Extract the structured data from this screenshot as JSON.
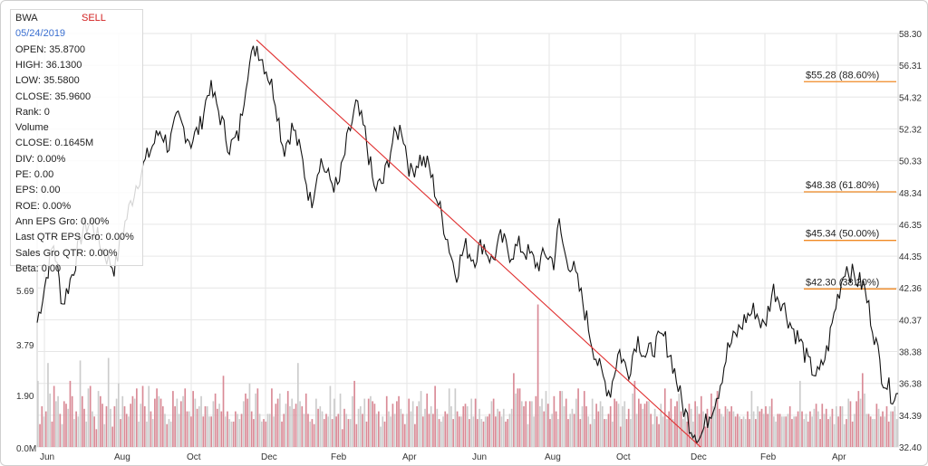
{
  "chart_data": {
    "type": "line",
    "ticker": "BWA",
    "rating": "SELL",
    "info": {
      "date": "05/24/2019",
      "open": "OPEN: 35.8700",
      "high": "HIGH: 36.1300",
      "low": "LOW: 35.5800",
      "close": "CLOSE: 35.9600",
      "rank": "Rank: 0",
      "volume_label": "Volume",
      "volume_close": "CLOSE: 0.1645M",
      "div": "DIV: 0.00%",
      "pe": "PE: 0.00",
      "eps": "EPS: 0.00",
      "roe": "ROE: 0.00%",
      "ann_eps_gro": "Ann EPS Gro: 0.00%",
      "last_qtr_eps_gro": "Last QTR EPS Gro: 0.00%",
      "sales_gro_qtr": "Sales Gro QTR: 0.00%",
      "beta": "Beta: 0.00"
    },
    "price_axis": {
      "ticks": [
        "58.30",
        "56.31",
        "54.32",
        "52.32",
        "50.33",
        "48.34",
        "46.35",
        "44.35",
        "42.36",
        "40.37",
        "38.38",
        "36.38",
        "34.39",
        "32.40"
      ],
      "range": [
        32.4,
        58.3
      ]
    },
    "volume_axis": {
      "ticks": [
        "5.69",
        "3.79",
        "1.90",
        "0.0M"
      ],
      "range": [
        0,
        8.0
      ]
    },
    "x_axis": {
      "ticks": [
        "Jun",
        "Aug",
        "Oct",
        "Dec",
        "Feb",
        "Apr",
        "Jun",
        "Aug",
        "Oct",
        "Dec",
        "Feb",
        "Apr"
      ]
    },
    "price_series": [
      {
        "t": 0,
        "v": 40.2
      },
      {
        "t": 1.8,
        "v": 45.2
      },
      {
        "t": 2.8,
        "v": 41.3
      },
      {
        "t": 4.0,
        "v": 43.5
      },
      {
        "t": 5.0,
        "v": 46.0
      },
      {
        "t": 6.0,
        "v": 46.5
      },
      {
        "t": 7.0,
        "v": 45.0
      },
      {
        "t": 8.0,
        "v": 44.0
      },
      {
        "t": 8.6,
        "v": 43.6
      },
      {
        "t": 9.5,
        "v": 46.0
      },
      {
        "t": 11.0,
        "v": 49.0
      },
      {
        "t": 12.5,
        "v": 51.0
      },
      {
        "t": 13.6,
        "v": 52.3
      },
      {
        "t": 14.5,
        "v": 51.2
      },
      {
        "t": 15.5,
        "v": 53.0
      },
      {
        "t": 17.0,
        "v": 51.5
      },
      {
        "t": 18.0,
        "v": 52.5
      },
      {
        "t": 19.0,
        "v": 55.0
      },
      {
        "t": 20.0,
        "v": 53.5
      },
      {
        "t": 21.2,
        "v": 51.2
      },
      {
        "t": 22.2,
        "v": 51.8
      },
      {
        "t": 23.2,
        "v": 56.0
      },
      {
        "t": 24.2,
        "v": 57.6
      },
      {
        "t": 25.2,
        "v": 56.2
      },
      {
        "t": 26.2,
        "v": 54.5
      },
      {
        "t": 27.2,
        "v": 51.0
      },
      {
        "t": 28.2,
        "v": 52.5
      },
      {
        "t": 29.2,
        "v": 50.5
      },
      {
        "t": 30.2,
        "v": 47.6
      },
      {
        "t": 31.2,
        "v": 50.5
      },
      {
        "t": 32.2,
        "v": 49.2
      },
      {
        "t": 33.2,
        "v": 48.6
      },
      {
        "t": 34.2,
        "v": 51.5
      },
      {
        "t": 35.2,
        "v": 53.8
      },
      {
        "t": 36.2,
        "v": 52.0
      },
      {
        "t": 37.2,
        "v": 48.5
      },
      {
        "t": 38.2,
        "v": 49.0
      },
      {
        "t": 39.2,
        "v": 51.5
      },
      {
        "t": 40.2,
        "v": 52.5
      },
      {
        "t": 41.2,
        "v": 49.5
      },
      {
        "t": 42.2,
        "v": 50.5
      },
      {
        "t": 43.2,
        "v": 50.0
      },
      {
        "t": 44.2,
        "v": 47.8
      },
      {
        "t": 45.2,
        "v": 45.6
      },
      {
        "t": 46.2,
        "v": 43.2
      },
      {
        "t": 47.2,
        "v": 45.0
      },
      {
        "t": 48.2,
        "v": 44.2
      },
      {
        "t": 49.2,
        "v": 45.2
      },
      {
        "t": 50.2,
        "v": 44.0
      },
      {
        "t": 51.2,
        "v": 45.5
      },
      {
        "t": 52.2,
        "v": 44.5
      },
      {
        "t": 53.2,
        "v": 45.0
      },
      {
        "t": 54.2,
        "v": 44.5
      },
      {
        "t": 55.2,
        "v": 43.8
      },
      {
        "t": 56.2,
        "v": 44.5
      },
      {
        "t": 57.0,
        "v": 44.0
      },
      {
        "t": 57.6,
        "v": 46.4
      },
      {
        "t": 58.2,
        "v": 44.5
      },
      {
        "t": 59.2,
        "v": 43.5
      },
      {
        "t": 60.2,
        "v": 41.5
      },
      {
        "t": 61.2,
        "v": 39.0
      },
      {
        "t": 62.2,
        "v": 37.0
      },
      {
        "t": 63.2,
        "v": 35.8
      },
      {
        "t": 64.2,
        "v": 38.5
      },
      {
        "t": 65.2,
        "v": 37.0
      },
      {
        "t": 66.2,
        "v": 39.3
      },
      {
        "t": 67.2,
        "v": 38.0
      },
      {
        "t": 68.2,
        "v": 38.8
      },
      {
        "t": 69.2,
        "v": 39.3
      },
      {
        "t": 70.2,
        "v": 37.5
      },
      {
        "t": 71.2,
        "v": 35.0
      },
      {
        "t": 72.2,
        "v": 33.6
      },
      {
        "t": 73.2,
        "v": 33.0
      },
      {
        "t": 74.2,
        "v": 34.5
      },
      {
        "t": 75.2,
        "v": 36.0
      },
      {
        "t": 76.2,
        "v": 38.5
      },
      {
        "t": 77.2,
        "v": 39.5
      },
      {
        "t": 78.2,
        "v": 40.5
      },
      {
        "t": 79.2,
        "v": 41.0
      },
      {
        "t": 80.2,
        "v": 39.8
      },
      {
        "t": 81.2,
        "v": 42.3
      },
      {
        "t": 82.2,
        "v": 41.5
      },
      {
        "t": 83.2,
        "v": 40.0
      },
      {
        "t": 84.2,
        "v": 39.0
      },
      {
        "t": 85.2,
        "v": 37.5
      },
      {
        "t": 86.2,
        "v": 36.8
      },
      {
        "t": 87.2,
        "v": 38.5
      },
      {
        "t": 88.2,
        "v": 41.5
      },
      {
        "t": 89.2,
        "v": 43.8
      },
      {
        "t": 90.2,
        "v": 43.0
      },
      {
        "t": 91.2,
        "v": 42.5
      },
      {
        "t": 92.2,
        "v": 40.0
      },
      {
        "t": 93.2,
        "v": 37.0
      },
      {
        "t": 94.2,
        "v": 35.8
      },
      {
        "t": 95.0,
        "v": 35.6
      }
    ],
    "volume_values": [
      2.6,
      0.9,
      1.6,
      1.2,
      1.4,
      3.3,
      2.1,
      1.0,
      2.4,
      1.8,
      2.0,
      1.3,
      0.9,
      1.8,
      1.7,
      1.5,
      2.6,
      2.0,
      1.1,
      1.4,
      1.2,
      3.4,
      2.0,
      1.5,
      1.0,
      2.3,
      2.4,
      1.4,
      1.2,
      0.7,
      2.2,
      2.0,
      1.7,
      0.9,
      1.6,
      3.5,
      1.5,
      0.8,
      1.6,
      1.9,
      2.5,
      1.1,
      2.0,
      1.6,
      1.3,
      1.2,
      1.7,
      2.0,
      1.9,
      2.3,
      1.0,
      1.7,
      2.4,
      1.6,
      1.0,
      2.4,
      1.4,
      1.1,
      1.9,
      2.3,
      2.0,
      1.9,
      1.6,
      1.3,
      0.9,
      1.1,
      1.0,
      2.2,
      1.6,
      1.9,
      1.3,
      1.8,
      2.0,
      2.3,
      1.4,
      1.4,
      1.2,
      2.2,
      1.9,
      1.5,
      1.6,
      2.0,
      1.2,
      1.6,
      1.6,
      1.2,
      1.2,
      1.8,
      2.1,
      1.5,
      1.7,
      1.4,
      2.8,
      1.2,
      1.4,
      1.1,
      1.0,
      1.0,
      1.4,
      1.3,
      1.1,
      1.3,
      1.8,
      2.1,
      1.9,
      2.5,
      1.4,
      1.1,
      2.1,
      2.3,
      1.3,
      1.0,
      1.1,
      1.0,
      1.3,
      1.3,
      2.3,
      1.2,
      1.7,
      1.9,
      2.1,
      1.0,
      1.3,
      1.7,
      2.2,
      1.6,
      1.9,
      1.5,
      1.7,
      3.3,
      1.8,
      1.6,
      1.3,
      2.1,
      1.3,
      1.0,
      1.1,
      0.9,
      1.9,
      1.5,
      1.6,
      1.4,
      1.1,
      1.3,
      1.2,
      2.4,
      1.1,
      1.9,
      1.2,
      1.3,
      2.1,
      0.7,
      1.5,
      1.3,
      1.1,
      1.1,
      2.0,
      2.6,
      0.9,
      1.5,
      1.6,
      1.3,
      1.9,
      1.0,
      1.9,
      2.0,
      1.8,
      1.7,
      1.3,
      1.4,
      0.8,
      1.2,
      1.0,
      2.0,
      1.4,
      1.2,
      1.7,
      1.3,
      1.8,
      2.0,
      1.5,
      1.3,
      0.9,
      1.3,
      1.9,
      1.4,
      1.8,
      0.9,
      1.6,
      1.8,
      2.2,
      1.2,
      1.5,
      2.1,
      1.3,
      1.6,
      1.3,
      2.4,
      1.5,
      1.1,
      1.0,
      1.2,
      1.4,
      1.3,
      2.3,
      1.6,
      1.1,
      2.3,
      1.4,
      1.2,
      1.2,
      1.6,
      1.7,
      1.6,
      1.1,
      1.9,
      1.2,
      1.9,
      1.1,
      1.5,
      1.1,
      1.0,
      1.2,
      1.2,
      1.3,
      1.8,
      1.9,
      1.2,
      1.5,
      1.4,
      1.2,
      1.5,
      1.0,
      1.1,
      1.3,
      1.5,
      2.9,
      2.1,
      2.3,
      2.3,
      1.8,
      1.6,
      1.8,
      0.9,
      1.8,
      1.8,
      1.2,
      2.0,
      5.6,
      1.6,
      1.9,
      1.4,
      2.2,
      1.7,
      1.1,
      1.3,
      2.0,
      1.4,
      1.1,
      2.2,
      2.2,
      1.6,
      1.9,
      1.1,
      1.3,
      1.5,
      1.3,
      1.9,
      2.3,
      1.1,
      1.6,
      2.2,
      1.6,
      1.2,
      0.9,
      1.9,
      1.1,
      1.7,
      1.4,
      1.8,
      1.6,
      1.1,
      1.1,
      1.3,
      1.6,
      1.0,
      1.9,
      1.8,
      1.7,
      0.8,
      1.6,
      1.8,
      1.1,
      1.5,
      1.1,
      2.1,
      2.6,
      1.3,
      1.9,
      1.7,
      1.5,
      1.7,
      1.8,
      1.8,
      1.3,
      0.9,
      1.5,
      1.2,
      0.9,
      1.7,
      1.2,
      2.3,
      1.1,
      1.4,
      1.9,
      1.1,
      1.6,
      1.8,
      2.1,
      1.4,
      1.1,
      1.5,
      1.0,
      1.7,
      1.5,
      1.0,
      1.8,
      1.6,
      1.3,
      2.0,
      1.4,
      0.8,
      1.5,
      1.2,
      2.1,
      1.6,
      1.9,
      2.2,
      1.5,
      1.3,
      1.2,
      1.6,
      1.5,
      1.4,
      1.6,
      1.4,
      1.2,
      1.3,
      1.2,
      1.1,
      1.2,
      1.1,
      1.4,
      1.1,
      2.2,
      1.4,
      1.1,
      1.6,
      1.4,
      1.5,
      1.3,
      1.6,
      1.3,
      1.6,
      1.9,
      1.2,
      1.0,
      1.3,
      1.3,
      1.2,
      1.2,
      1.2,
      1.3,
      1.6,
      1.1,
      1.2,
      1.2,
      1.4,
      2.6,
      1.4,
      1.1,
      1.3,
      1.0,
      1.4,
      1.2,
      1.5,
      1.7,
      1.4,
      1.1,
      1.7,
      1.3,
      1.5,
      1.1,
      1.2,
      1.5,
      0.9,
      1.6,
      1.2,
      1.6,
      1.6,
      0.9,
      1.1,
      1.9,
      1.8,
      1.0,
      1.3,
      1.8,
      2.2,
      1.9,
      2.9,
      2.1,
      1.3,
      1.3,
      1.2,
      1.1,
      1.1,
      1.7,
      1.5,
      1.2,
      1.4,
      1.2,
      1.6,
      1.0,
      1.4,
      1.4,
      1.6,
      1.1
    ],
    "trendline": {
      "from": {
        "t": 24.2,
        "v": 57.9
      },
      "to": {
        "t": 73.2,
        "v": 32.4
      }
    },
    "fib_levels": [
      {
        "label": "$55.28 (88.60%)",
        "value": 55.28
      },
      {
        "label": "$48.38 (61.80%)",
        "value": 48.38
      },
      {
        "label": "$45.34 (50.00%)",
        "value": 45.34
      },
      {
        "label": "$42.30 (38.20%)",
        "value": 42.3
      }
    ],
    "colors": {
      "price": "#111111",
      "trend": "#e03030",
      "fib": "#f08a24",
      "vol_up": "#d98a96",
      "vol_down": "#cccccc",
      "grid": "#e6e6e6"
    }
  }
}
